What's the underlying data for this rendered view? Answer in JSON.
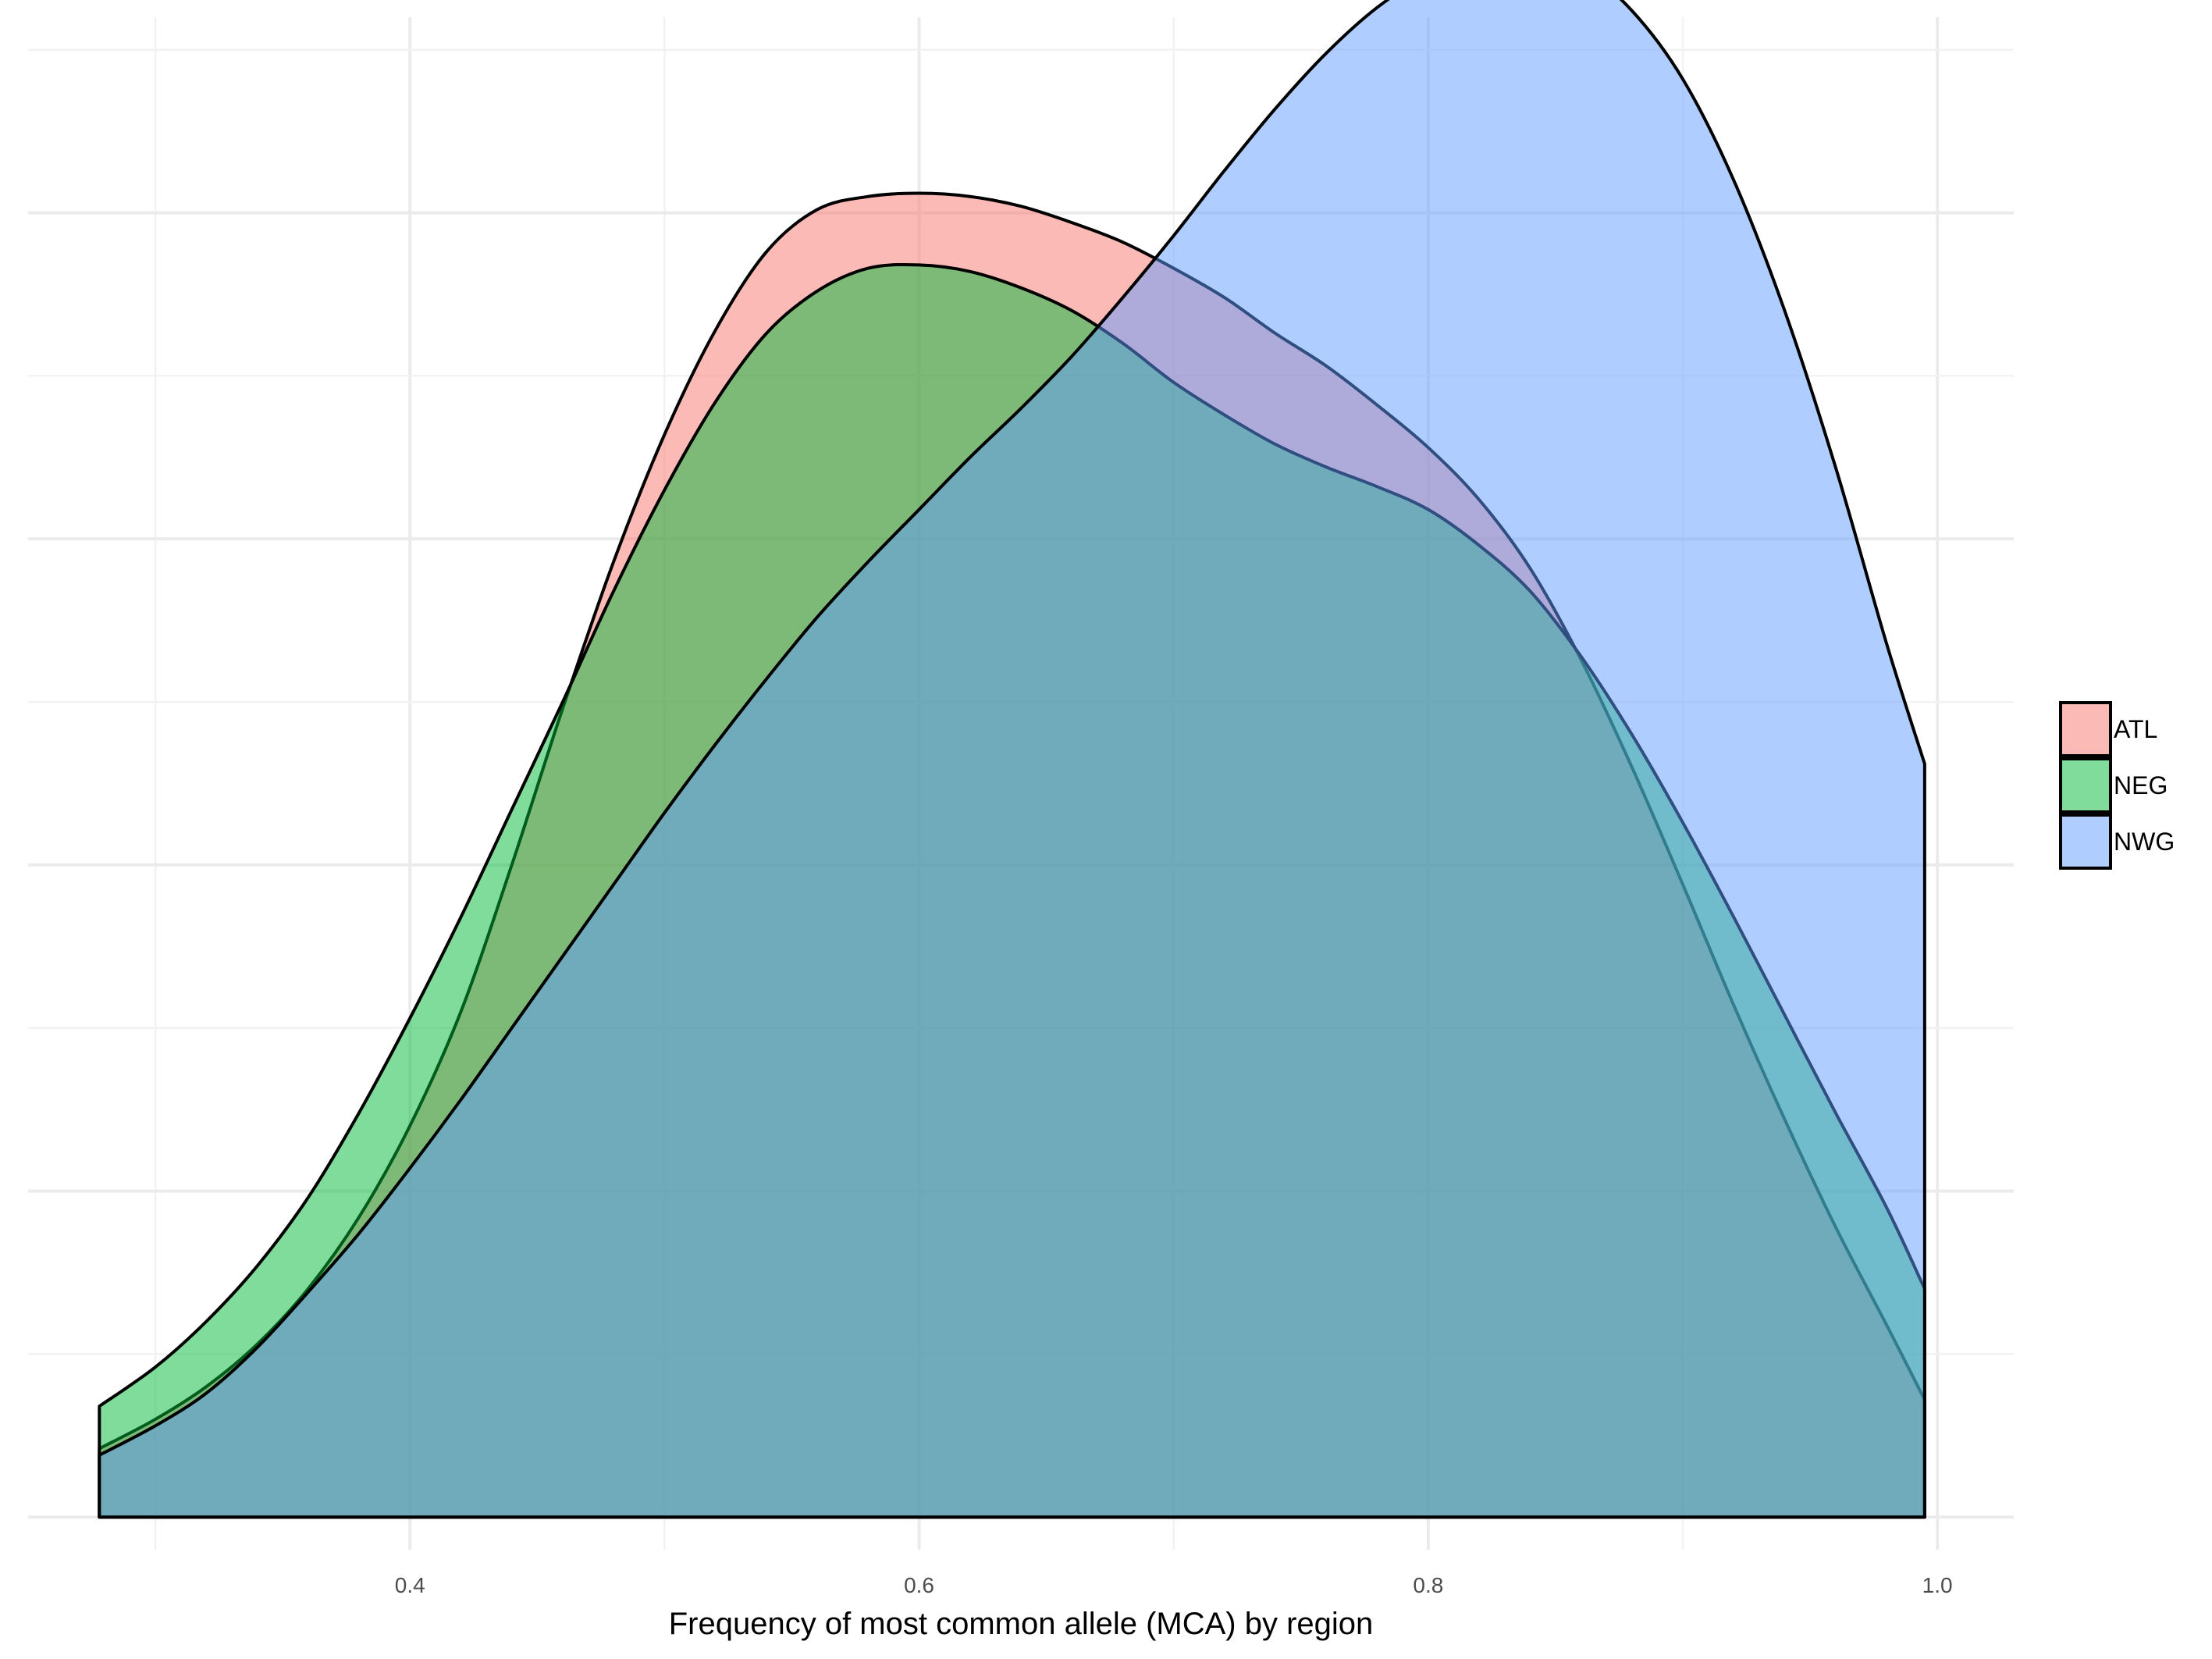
{
  "chart_data": {
    "type": "area",
    "title": "",
    "xlabel": "Frequency of most common allele (MCA) by region",
    "ylabel": "",
    "xlim": [
      0.25,
      1.03
    ],
    "ylim": [
      -0.1,
      4.6
    ],
    "x_ticks": [
      0.4,
      0.6,
      0.8,
      1.0
    ],
    "x_tick_labels": [
      "0.4",
      "0.6",
      "0.8",
      "1.0"
    ],
    "y_ticks_shown": false,
    "grid": true,
    "legend_position": "right",
    "series": [
      {
        "name": "ATL",
        "color": "#F8766D",
        "x": [
          0.278,
          0.3,
          0.32,
          0.34,
          0.36,
          0.38,
          0.4,
          0.42,
          0.44,
          0.46,
          0.48,
          0.5,
          0.52,
          0.54,
          0.56,
          0.58,
          0.6,
          0.62,
          0.64,
          0.66,
          0.68,
          0.7,
          0.72,
          0.74,
          0.76,
          0.78,
          0.8,
          0.82,
          0.84,
          0.86,
          0.88,
          0.9,
          0.92,
          0.94,
          0.96,
          0.98,
          0.995
        ],
        "y": [
          0.21,
          0.3,
          0.4,
          0.53,
          0.7,
          0.92,
          1.2,
          1.55,
          2.0,
          2.48,
          2.93,
          3.32,
          3.64,
          3.88,
          4.01,
          4.05,
          4.06,
          4.05,
          4.02,
          3.97,
          3.91,
          3.83,
          3.74,
          3.63,
          3.53,
          3.41,
          3.28,
          3.12,
          2.91,
          2.63,
          2.3,
          1.94,
          1.57,
          1.22,
          0.89,
          0.59,
          0.36
        ]
      },
      {
        "name": "NEG",
        "color": "#00BA38",
        "x": [
          0.278,
          0.3,
          0.32,
          0.34,
          0.36,
          0.38,
          0.4,
          0.42,
          0.44,
          0.46,
          0.48,
          0.5,
          0.52,
          0.54,
          0.56,
          0.58,
          0.6,
          0.62,
          0.64,
          0.66,
          0.68,
          0.7,
          0.72,
          0.74,
          0.76,
          0.78,
          0.8,
          0.82,
          0.84,
          0.86,
          0.88,
          0.9,
          0.92,
          0.94,
          0.96,
          0.98,
          0.995
        ],
        "y": [
          0.34,
          0.46,
          0.6,
          0.77,
          0.98,
          1.24,
          1.53,
          1.84,
          2.17,
          2.5,
          2.84,
          3.15,
          3.42,
          3.63,
          3.76,
          3.83,
          3.84,
          3.82,
          3.77,
          3.7,
          3.6,
          3.48,
          3.38,
          3.29,
          3.22,
          3.16,
          3.09,
          2.98,
          2.84,
          2.64,
          2.4,
          2.13,
          1.84,
          1.54,
          1.24,
          0.95,
          0.7
        ]
      },
      {
        "name": "NWG",
        "color": "#619CFF",
        "x": [
          0.278,
          0.3,
          0.32,
          0.34,
          0.36,
          0.38,
          0.4,
          0.42,
          0.44,
          0.46,
          0.48,
          0.5,
          0.52,
          0.54,
          0.56,
          0.58,
          0.6,
          0.62,
          0.64,
          0.66,
          0.68,
          0.7,
          0.72,
          0.74,
          0.76,
          0.78,
          0.8,
          0.82,
          0.84,
          0.86,
          0.88,
          0.9,
          0.92,
          0.94,
          0.96,
          0.98,
          0.995
        ],
        "y": [
          0.19,
          0.28,
          0.38,
          0.52,
          0.69,
          0.87,
          1.07,
          1.28,
          1.5,
          1.72,
          1.94,
          2.16,
          2.37,
          2.57,
          2.76,
          2.93,
          3.09,
          3.25,
          3.4,
          3.56,
          3.74,
          3.93,
          4.13,
          4.32,
          4.49,
          4.63,
          4.73,
          4.79,
          4.8,
          4.75,
          4.62,
          4.41,
          4.1,
          3.7,
          3.22,
          2.68,
          2.31
        ]
      }
    ]
  }
}
